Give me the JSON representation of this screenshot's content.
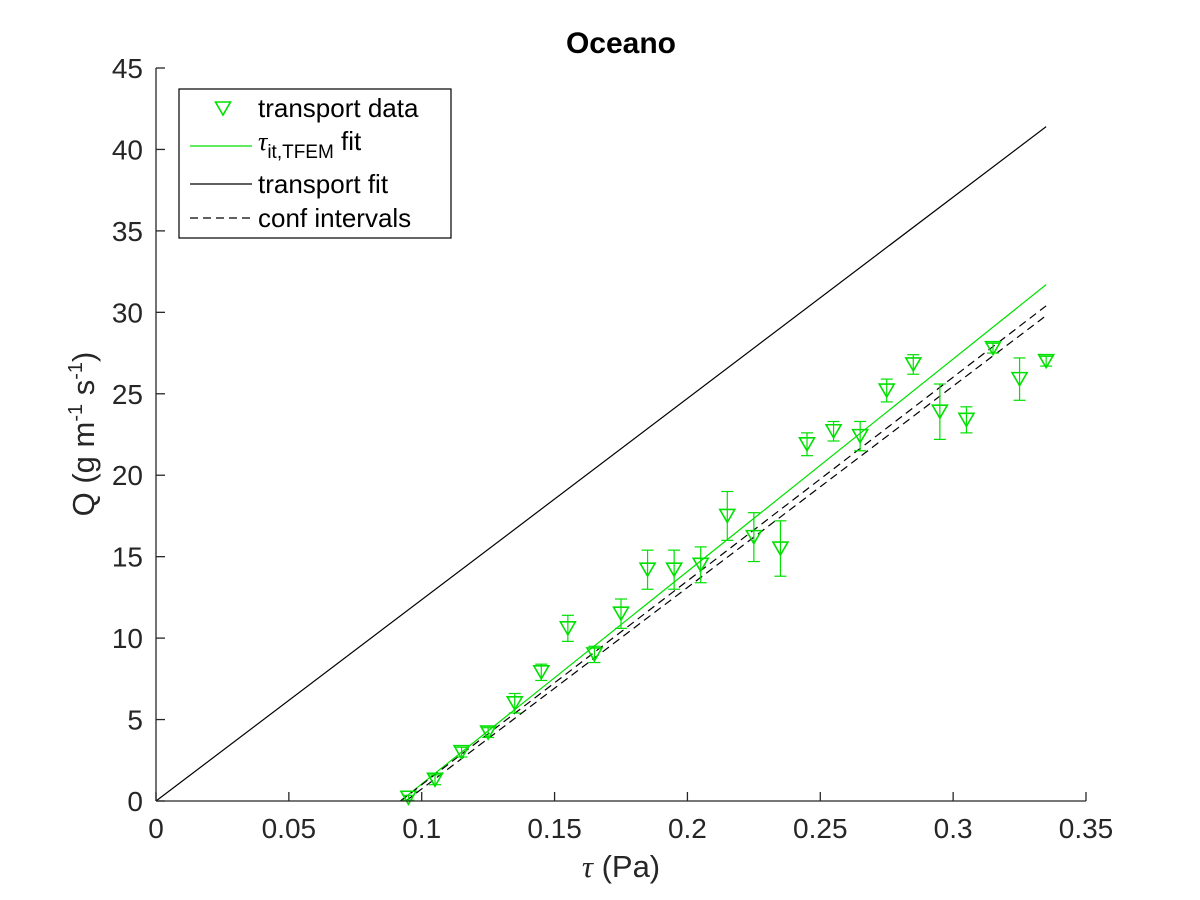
{
  "chart_data": {
    "type": "scatter",
    "title": "Oceano",
    "xlabel_symbol": "τ",
    "xlabel_unit": " (Pa)",
    "ylabel_parts": {
      "base": "Q (g m",
      "sup1": "-1",
      "mid": " s",
      "sup2": "-1",
      "end": ")"
    },
    "xlim": [
      0,
      0.35
    ],
    "ylim": [
      0,
      45
    ],
    "xticks": [
      0,
      0.05,
      0.1,
      0.15,
      0.2,
      0.25,
      0.3,
      0.35
    ],
    "xtick_labels": [
      "0",
      "0.05",
      "0.1",
      "0.15",
      "0.2",
      "0.25",
      "0.3",
      "0.35"
    ],
    "yticks": [
      0,
      5,
      10,
      15,
      20,
      25,
      30,
      35,
      40,
      45
    ],
    "ytick_labels": [
      "0",
      "5",
      "10",
      "15",
      "20",
      "25",
      "30",
      "35",
      "40",
      "45"
    ],
    "grid": false,
    "legend_position": "top-left",
    "legend": {
      "transport_data": "transport data",
      "tfem_symbol": "τ",
      "tfem_sub": "it,TFEM",
      "tfem_suffix": " fit",
      "transport_fit": "transport fit",
      "conf_intervals": "conf intervals"
    },
    "colors": {
      "data": "#00e000",
      "tfem_fit": "#00e000",
      "transport_fit": "#000000",
      "conf": "#000000",
      "axes": "#262626"
    },
    "series": [
      {
        "name": "transport data",
        "kind": "markers-with-errorbars",
        "points": [
          {
            "x": 0.095,
            "y": 0.2,
            "err": 0.15
          },
          {
            "x": 0.105,
            "y": 1.3,
            "err": 0.3
          },
          {
            "x": 0.115,
            "y": 3.0,
            "err": 0.3
          },
          {
            "x": 0.125,
            "y": 4.2,
            "err": 0.3
          },
          {
            "x": 0.135,
            "y": 6.0,
            "err": 0.6
          },
          {
            "x": 0.145,
            "y": 7.9,
            "err": 0.5
          },
          {
            "x": 0.155,
            "y": 10.6,
            "err": 0.8
          },
          {
            "x": 0.165,
            "y": 9.0,
            "err": 0.5
          },
          {
            "x": 0.175,
            "y": 11.5,
            "err": 0.9
          },
          {
            "x": 0.185,
            "y": 14.2,
            "err": 1.2
          },
          {
            "x": 0.195,
            "y": 14.2,
            "err": 1.2
          },
          {
            "x": 0.205,
            "y": 14.5,
            "err": 1.1
          },
          {
            "x": 0.215,
            "y": 17.5,
            "err": 1.5
          },
          {
            "x": 0.225,
            "y": 16.2,
            "err": 1.5
          },
          {
            "x": 0.235,
            "y": 15.5,
            "err": 1.7
          },
          {
            "x": 0.245,
            "y": 21.9,
            "err": 0.7
          },
          {
            "x": 0.255,
            "y": 22.7,
            "err": 0.6
          },
          {
            "x": 0.265,
            "y": 22.4,
            "err": 0.9
          },
          {
            "x": 0.275,
            "y": 25.2,
            "err": 0.7
          },
          {
            "x": 0.285,
            "y": 26.8,
            "err": 0.6
          },
          {
            "x": 0.295,
            "y": 23.9,
            "err": 1.7
          },
          {
            "x": 0.305,
            "y": 23.4,
            "err": 0.8
          },
          {
            "x": 0.315,
            "y": 27.8,
            "err": 0.3
          },
          {
            "x": 0.325,
            "y": 25.9,
            "err": 1.3
          },
          {
            "x": 0.335,
            "y": 27.0,
            "err": 0.3
          }
        ]
      },
      {
        "name": "τit,TFEM fit",
        "kind": "line",
        "points": [
          {
            "x": 0.092,
            "y": 0
          },
          {
            "x": 0.335,
            "y": 31.7
          }
        ]
      },
      {
        "name": "transport fit",
        "kind": "line",
        "points": [
          {
            "x": 0,
            "y": 0
          },
          {
            "x": 0.335,
            "y": 41.4
          }
        ]
      },
      {
        "name": "conf intervals",
        "kind": "dashed-line",
        "points": [
          {
            "x": 0.092,
            "y": 0
          },
          {
            "x": 0.335,
            "y": 30.4
          }
        ]
      },
      {
        "name": "conf intervals",
        "kind": "dashed-line",
        "points": [
          {
            "x": 0.094,
            "y": 0
          },
          {
            "x": 0.335,
            "y": 29.8
          }
        ]
      }
    ]
  }
}
